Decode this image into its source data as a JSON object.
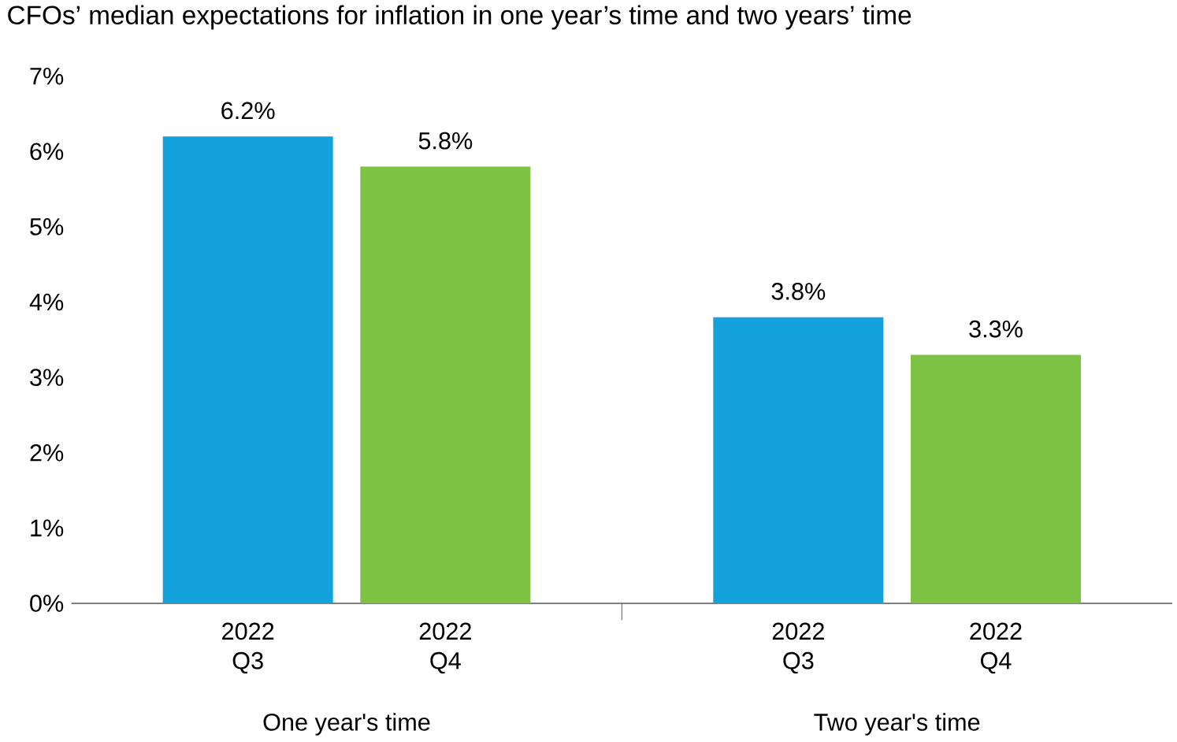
{
  "chart_data": {
    "type": "bar",
    "title": "CFOs’ median expectations for inflation in one year’s time and two years’ time",
    "categories": [
      "One year's time",
      "Two year's time"
    ],
    "series": [
      {
        "name": "2022 Q3",
        "color": "#13a1dc",
        "values": [
          6.2,
          3.8
        ],
        "value_labels": [
          "6.2%",
          "3.8%"
        ]
      },
      {
        "name": "2022 Q4",
        "color": "#7dc242",
        "values": [
          5.8,
          3.3
        ],
        "value_labels": [
          "5.8%",
          "3.3%"
        ]
      }
    ],
    "ylim": [
      0,
      7
    ],
    "yticks": [
      {
        "value": 0,
        "label": "0%"
      },
      {
        "value": 1,
        "label": "1%"
      },
      {
        "value": 2,
        "label": "2%"
      },
      {
        "value": 3,
        "label": "3%"
      },
      {
        "value": 4,
        "label": "4%"
      },
      {
        "value": 5,
        "label": "5%"
      },
      {
        "value": 6,
        "label": "6%"
      },
      {
        "value": 7,
        "label": "7%"
      }
    ]
  }
}
